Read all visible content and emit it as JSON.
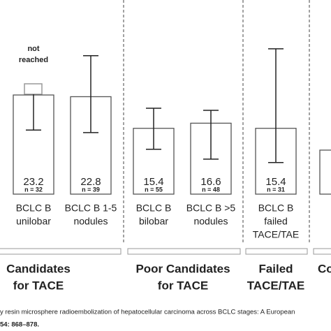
{
  "chart_data": {
    "type": "bar",
    "categories": [
      [
        "BCLC B",
        "unilobar"
      ],
      [
        "BCLC B   1-5",
        "nodules"
      ],
      [
        "BCLC B",
        "bilobar"
      ],
      [
        "BCLC B   >5",
        "nodules"
      ],
      [
        "BCLC B",
        "failed",
        "TACE/TAE"
      ],
      null
    ],
    "values": [
      23.2,
      22.8,
      15.4,
      16.6,
      15.4,
      10.3
    ],
    "value_labels": [
      "23.2",
      "22.8",
      "15.4",
      "16.6",
      "15.4",
      null
    ],
    "n_labels": [
      "n = 32",
      "n = 39",
      "n = 55",
      "n = 48",
      "n = 31",
      null
    ],
    "error_low": [
      15.0,
      14.4,
      10.5,
      8.2,
      7.4,
      null
    ],
    "error_high": [
      null,
      32.4,
      20.1,
      19.6,
      34.0,
      null
    ],
    "annotation": [
      "not",
      "reached"
    ],
    "ylim": [
      0,
      45
    ],
    "color": "#ffffff",
    "groups": [
      {
        "label": [
          "Candidates",
          "for TACE"
        ],
        "size": 2
      },
      {
        "label": [
          "Poor Candidates",
          "for TACE"
        ],
        "size": 2
      },
      {
        "label": [
          "Failed",
          "TACE/TAE"
        ],
        "size": 1
      },
      {
        "label": [
          "Co"
        ],
        "size": 1
      }
    ],
    "source": [
      "y resin microsphere radioembolization of hepatocellular carcinoma across BCLC stages: A European",
      "54: 868–878."
    ]
  }
}
